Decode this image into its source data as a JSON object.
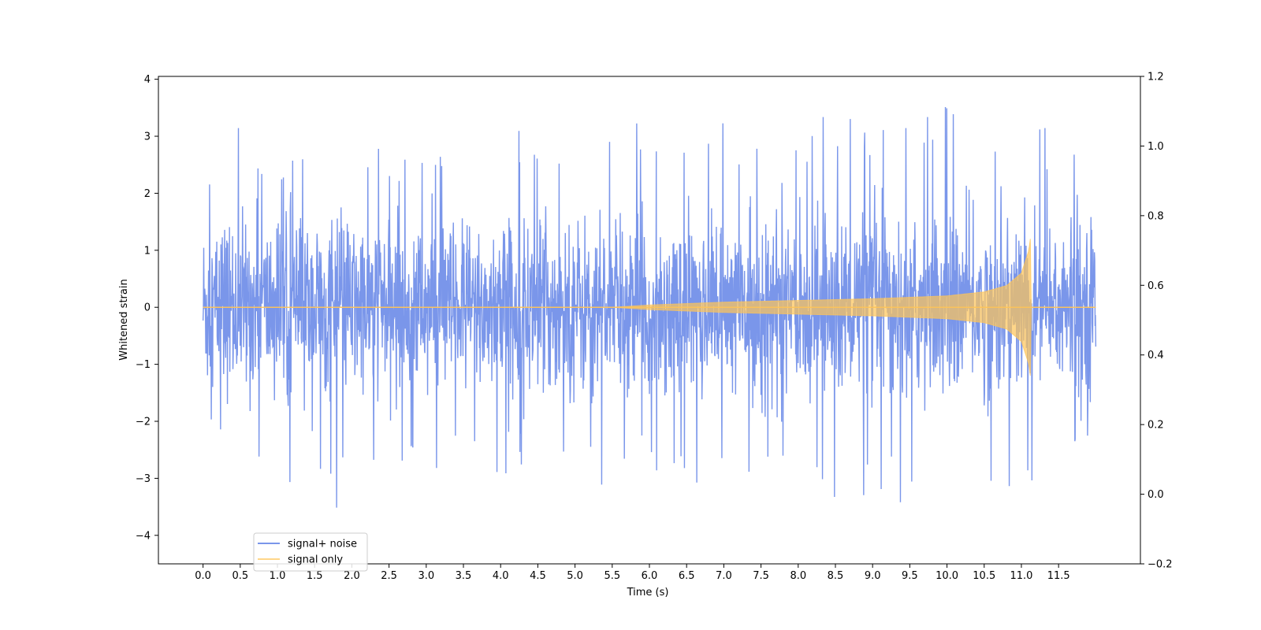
{
  "chart_data": {
    "type": "line",
    "title": "",
    "xlabel": "Time (s)",
    "ylabel": "Whitened strain",
    "y2label": "",
    "xlim": [
      -0.6,
      12.6
    ],
    "ylim": [
      -4.5,
      4.05
    ],
    "y2lim": [
      -0.2,
      1.2
    ],
    "grid": false,
    "legend_placement": "lower-left",
    "xticks": [
      "0.0",
      "0.5",
      "1.0",
      "1.5",
      "2.0",
      "2.5",
      "3.0",
      "3.5",
      "4.0",
      "4.5",
      "5.0",
      "5.5",
      "6.0",
      "6.5",
      "7.0",
      "7.5",
      "8.0",
      "8.5",
      "9.0",
      "9.5",
      "10.0",
      "10.5",
      "11.0",
      "11.5"
    ],
    "yticks": [
      "−4",
      "−3",
      "−2",
      "−1",
      "0",
      "1",
      "2",
      "3",
      "4"
    ],
    "y2ticks": [
      "−0.2",
      "0.0",
      "0.2",
      "0.4",
      "0.6",
      "0.8",
      "1.0",
      "1.2"
    ],
    "series": [
      {
        "name": "signal+ noise",
        "color": "#4169e1",
        "opacity": 0.7,
        "description": "noise",
        "x_range": [
          0.0,
          12.0
        ],
        "envelope_upper": [
          [
            0.0,
            2.4
          ],
          [
            0.25,
            3.4
          ],
          [
            1.0,
            2.6
          ],
          [
            2.5,
            2.9
          ],
          [
            5.0,
            3.2
          ],
          [
            8.0,
            3.3
          ],
          [
            10.33,
            3.65
          ],
          [
            11.5,
            3.1
          ],
          [
            12.0,
            2.9
          ]
        ],
        "envelope_lower": [
          [
            0.0,
            -2.1
          ],
          [
            1.05,
            -4.0
          ],
          [
            3.0,
            -2.8
          ],
          [
            5.25,
            -3.1
          ],
          [
            7.5,
            -3.4
          ],
          [
            10.55,
            -3.5
          ],
          [
            10.9,
            -3.6
          ],
          [
            12.0,
            -2.1
          ]
        ]
      },
      {
        "name": "signal only",
        "color": "#ffc457",
        "opacity": 0.7,
        "description": "chirp",
        "x": [
          0.0,
          5.5,
          6.0,
          7.0,
          8.0,
          9.0,
          10.0,
          10.5,
          10.8,
          11.0,
          11.1,
          11.12,
          11.13,
          11.2,
          12.0
        ],
        "amplitude": [
          0.0,
          0.0,
          0.04,
          0.09,
          0.12,
          0.15,
          0.2,
          0.27,
          0.38,
          0.6,
          1.0,
          1.2,
          0.0,
          0.0,
          0.0
        ]
      }
    ]
  }
}
